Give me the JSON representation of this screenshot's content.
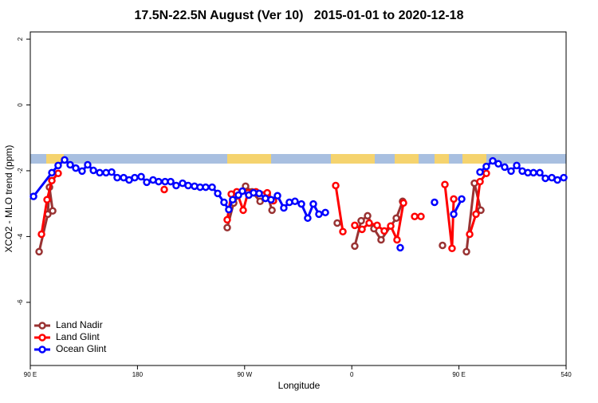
{
  "chart_data": {
    "type": "line",
    "title": "17.5N-22.5N August (Ver 10)   2015-01-01 to 2020-12-18",
    "xlabel": "Longitude",
    "ylabel": "XCO2 - MLO trend (ppm)",
    "xlim": [
      90,
      540
    ],
    "xticks": [
      {
        "value": 90,
        "label": "90 E"
      },
      180,
      {
        "value": 270,
        "label": "90 W"
      },
      {
        "value": 360,
        "label": "0"
      },
      {
        "value": 450,
        "label": "90 E"
      },
      540
    ],
    "ylim": [
      -7.92,
      2.22
    ],
    "yticks": [
      -6,
      -4,
      -2,
      0,
      2
    ],
    "legend": "bottom-left",
    "series": [
      {
        "name": "Land Nadir",
        "color": "#993333",
        "x": [
          97.4,
          104.7,
          106.1,
          108.8,
          null,
          255.4,
          260.8,
          270.8,
          276.2,
          283,
          289,
          293,
          null,
          347.8,
          null,
          362.5,
          367.9,
          373.3,
          378.6,
          384.6,
          397.4,
          402.7,
          null,
          436.2,
          null,
          456.3,
          463,
          468.4
        ],
        "values": [
          -4.46,
          -3.32,
          -2.5,
          -3.22,
          null,
          -3.73,
          -2.98,
          -2.47,
          -2.64,
          -2.93,
          -2.71,
          -3.2,
          null,
          -3.59,
          null,
          -4.29,
          -3.52,
          -3.37,
          -3.76,
          -4.1,
          -3.44,
          -2.93,
          null,
          -4.27,
          null,
          -4.46,
          -2.38,
          -3.2
        ]
      },
      {
        "name": "Land Glint",
        "color": "#ff0000",
        "x": [
          99.4,
          104.1,
          108.1,
          113.4,
          null,
          202.5,
          null,
          255.4,
          258.8,
          263.4,
          268.8,
          272.8,
          279.5,
          289,
          294.2,
          null,
          346.5,
          352.5,
          null,
          362.5,
          368.6,
          374.6,
          381.3,
          387.3,
          392.7,
          398,
          403.4,
          null,
          412.8,
          418.1,
          null,
          438.2,
          444.2,
          445.6,
          null,
          459,
          464.3,
          467.7,
          473
        ],
        "values": [
          -3.93,
          -2.88,
          -2.3,
          -2.08,
          null,
          -2.57,
          null,
          -3.49,
          -2.71,
          -2.64,
          -3.2,
          -2.67,
          -2.64,
          -2.67,
          -2.91,
          null,
          -2.45,
          -3.85,
          null,
          -3.66,
          -3.78,
          -3.59,
          -3.66,
          -3.83,
          -3.68,
          -4.1,
          -2.98,
          null,
          -3.39,
          -3.39,
          null,
          -2.42,
          -4.36,
          -2.86,
          null,
          -3.93,
          -3.32,
          -2.33,
          -2.08
        ]
      },
      {
        "name": "Ocean Glint",
        "color": "#0000ff",
        "x": [
          92.7,
          108.1,
          113.4,
          118.8,
          123.5,
          128.2,
          133.5,
          138.2,
          143,
          148.3,
          153.6,
          158.3,
          163,
          168.4,
          173,
          177.7,
          183.1,
          187.8,
          193.1,
          197.8,
          203.2,
          207.9,
          212.5,
          217.9,
          222.6,
          227.9,
          232.6,
          237.3,
          242.7,
          247.4,
          252.7,
          256.7,
          260,
          264.8,
          268.1,
          273.5,
          277.5,
          282.2,
          287.5,
          292.2,
          297.6,
          302.9,
          307.6,
          312.3,
          317.7,
          323,
          327.7,
          332.4,
          337.8,
          null,
          400.7,
          null,
          429.5,
          null,
          445.6,
          452.3,
          null,
          467.7,
          473,
          478.4,
          483.1,
          488.4,
          493.8,
          498.5,
          503.2,
          507.9,
          512.6,
          517.9,
          522.6,
          528,
          532.7,
          538
        ],
        "values": [
          -2.78,
          -2.06,
          -1.84,
          -1.67,
          -1.82,
          -1.92,
          -2.01,
          -1.82,
          -1.99,
          -2.06,
          -2.06,
          -2.04,
          -2.21,
          -2.21,
          -2.28,
          -2.21,
          -2.18,
          -2.35,
          -2.28,
          -2.33,
          -2.33,
          -2.33,
          -2.45,
          -2.38,
          -2.45,
          -2.47,
          -2.5,
          -2.5,
          -2.5,
          -2.69,
          -2.96,
          -3.18,
          -2.88,
          -2.74,
          -2.62,
          -2.74,
          -2.67,
          -2.69,
          -2.84,
          -2.88,
          -2.76,
          -3.13,
          -2.96,
          -2.93,
          -3.01,
          -3.44,
          -3.01,
          -3.32,
          -3.27,
          null,
          -4.34,
          null,
          -2.96,
          null,
          -3.32,
          -2.86,
          null,
          -2.04,
          -1.87,
          -1.7,
          -1.79,
          -1.89,
          -2.01,
          -1.84,
          -2.01,
          -2.06,
          -2.06,
          -2.06,
          -2.23,
          -2.21,
          -2.28,
          -2.21
        ]
      }
    ]
  }
}
